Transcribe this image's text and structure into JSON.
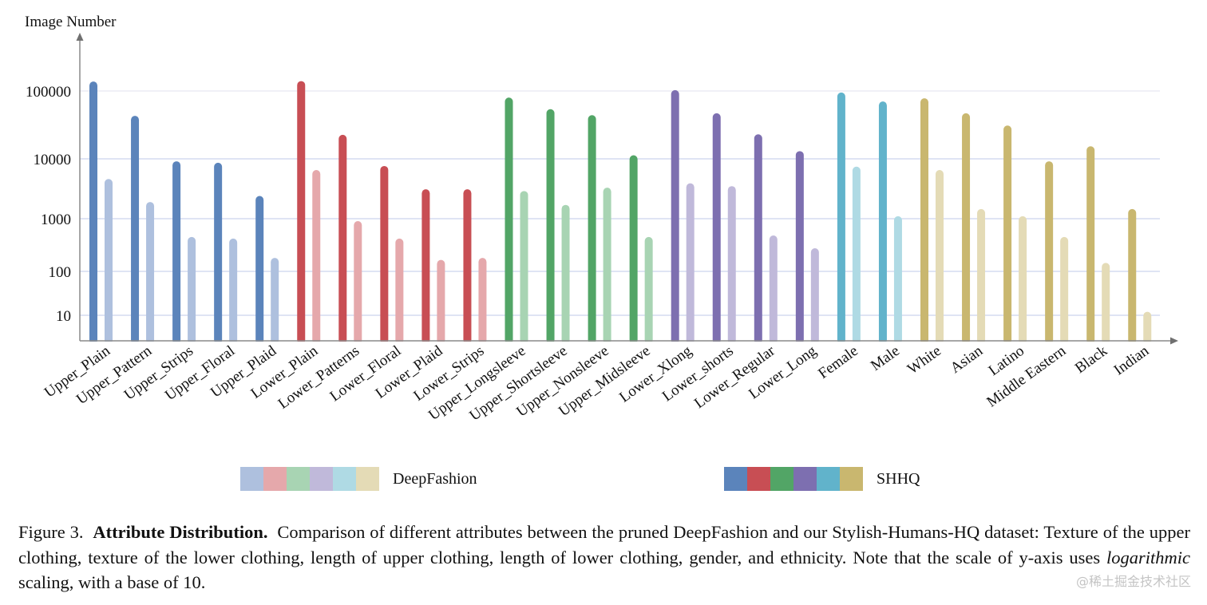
{
  "chart_data": {
    "type": "bar",
    "title": "",
    "ylabel": "Image Number",
    "xlabel": "",
    "yscale": "log",
    "ylim": [
      1,
      200000
    ],
    "yticks": [
      10,
      100,
      1000,
      10000,
      100000
    ],
    "ytick_labels": [
      "10",
      "100",
      "1000",
      "10000",
      "100000"
    ],
    "grid": true,
    "legend_placement": "bottom",
    "categories": [
      "Upper_Plain",
      "Upper_Pattern",
      "Upper_Strips",
      "Upper_Floral",
      "Upper_Plaid",
      "Lower_Plain",
      "Lower_Patterns",
      "Lower_Floral",
      "Lower_Plaid",
      "Lower_Strips",
      "Upper_Longsleeve",
      "Upper_Shortsleeve",
      "Upper_Nonsleeve",
      "Upper_Midsleeve",
      "Lower_Xlong",
      "Lower_shorts",
      "Lower_Regular",
      "Lower_Long",
      "Female",
      "Male",
      "White",
      "Asian",
      "Latino",
      "Middle Eastern",
      "Black",
      "Indian"
    ],
    "groups": [
      {
        "name": "Texture of upper clothing",
        "indices": [
          0,
          1,
          2,
          3,
          4
        ],
        "shhq_color": "#5b84bb",
        "df_color": "#aec0de"
      },
      {
        "name": "Texture of lower clothing",
        "indices": [
          5,
          6,
          7,
          8,
          9
        ],
        "shhq_color": "#c84e54",
        "df_color": "#e5a8ab"
      },
      {
        "name": "Length of upper clothing",
        "indices": [
          10,
          11,
          12,
          13
        ],
        "shhq_color": "#52a566",
        "df_color": "#a8d4b3"
      },
      {
        "name": "Length of lower clothing",
        "indices": [
          14,
          15,
          16,
          17
        ],
        "shhq_color": "#7d6fb0",
        "df_color": "#c0b9da"
      },
      {
        "name": "Gender",
        "indices": [
          18,
          19
        ],
        "shhq_color": "#61b3cb",
        "df_color": "#afdae4"
      },
      {
        "name": "Ethnicity",
        "indices": [
          20,
          21,
          22,
          23,
          24,
          25
        ],
        "shhq_color": "#c9b76f",
        "df_color": "#e4dbb6"
      }
    ],
    "series": [
      {
        "name": "SHHQ",
        "values": [
          138000,
          43000,
          9100,
          8600,
          2400,
          140000,
          22600,
          7600,
          3100,
          3100,
          80000,
          54000,
          44000,
          11300,
          103000,
          47000,
          23000,
          13000,
          95000,
          70000,
          78000,
          47000,
          31000,
          9100,
          15300,
          1450
        ]
      },
      {
        "name": "DeepFashion",
        "values": [
          4600,
          1900,
          450,
          420,
          180,
          6500,
          900,
          420,
          165,
          180,
          2900,
          1700,
          3300,
          450,
          3900,
          3500,
          480,
          275,
          7400,
          1100,
          6500,
          1450,
          1100,
          450,
          145,
          12
        ]
      }
    ]
  },
  "legend": {
    "deepfashion_label": "DeepFashion",
    "shhq_label": "SHHQ",
    "deepfashion_colors": [
      "#aec0de",
      "#e5a8ab",
      "#a8d4b3",
      "#c0b9da",
      "#afdae4",
      "#e4dbb6"
    ],
    "shhq_colors": [
      "#5b84bb",
      "#c84e54",
      "#52a566",
      "#7d6fb0",
      "#61b3cb",
      "#c9b76f"
    ]
  },
  "caption": {
    "figure_number": "Figure 3.",
    "bold_title": "Attribute Distribution.",
    "text_part1": "Comparison of different attributes between the pruned DeepFashion and our Stylish-Humans-HQ dataset: Texture of the upper clothing, texture of the lower clothing, length of upper clothing, length of lower clothing, gender, and ethnicity. Note that the scale of y-axis uses",
    "italic_word": "logarithmic",
    "text_part2": "scaling, with a base of 10."
  },
  "watermark": "@稀土掘金技术社区"
}
